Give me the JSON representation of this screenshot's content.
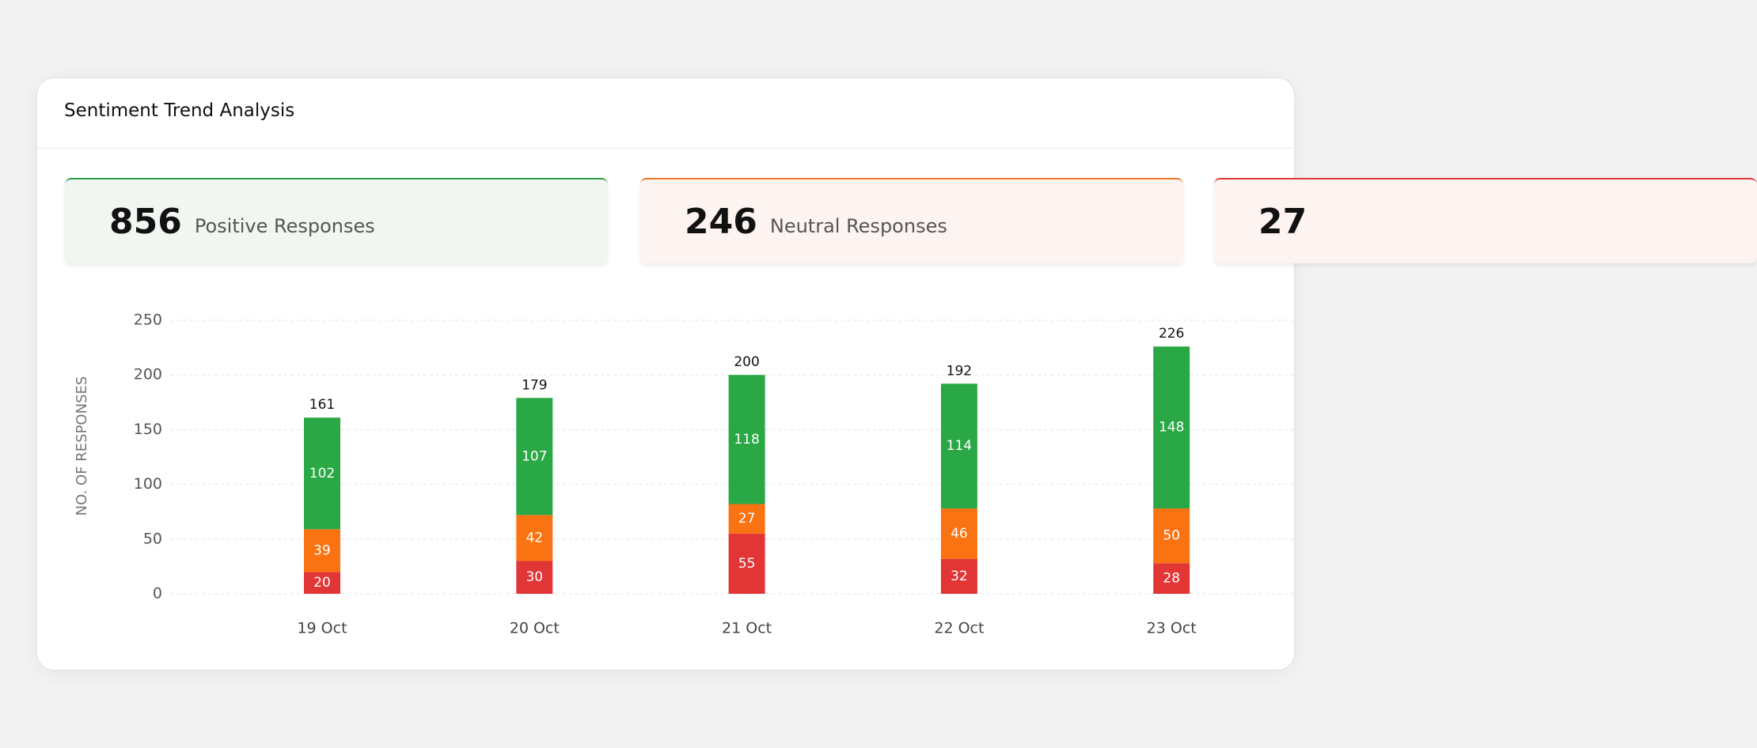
{
  "header": {
    "title": "Sentiment Trend Analysis"
  },
  "kpis": [
    {
      "value": "856",
      "label": "Positive Responses"
    },
    {
      "value": "246",
      "label": "Neutral Responses"
    },
    {
      "value": "27"
    }
  ],
  "chart_data": {
    "type": "stacked-bar",
    "y_label": "NO. OF RESPONSES",
    "categories": [
      "19 Oct",
      "20 Oct",
      "21 Oct",
      "22 Oct",
      "23 Oct"
    ],
    "series": [
      {
        "color": "#e23636",
        "values": [
          20,
          30,
          55,
          32,
          28
        ]
      },
      {
        "color": "#fa7312",
        "values": [
          39,
          42,
          27,
          46,
          50
        ]
      },
      {
        "color": "#2aa845",
        "values": [
          102,
          107,
          118,
          114,
          148
        ]
      }
    ],
    "totals": [
      161,
      179,
      200,
      192,
      226
    ],
    "ylim": [
      0,
      250
    ],
    "yticks": [
      0,
      50,
      100,
      150,
      200,
      250
    ],
    "grid": true
  }
}
